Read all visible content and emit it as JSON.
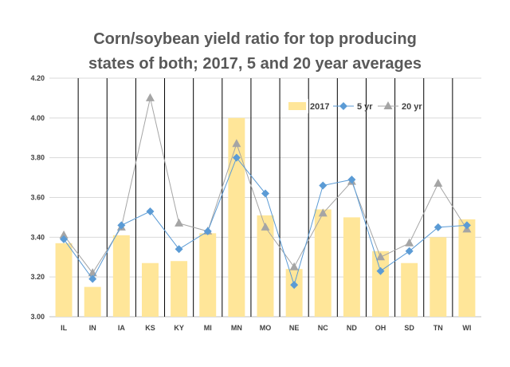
{
  "chart_data": {
    "type": "bar",
    "title_lines": [
      "Corn/soybean yield ratio for top producing",
      "states of both; 2017, 5 and 20 year averages"
    ],
    "xlabel": "",
    "ylabel": "",
    "categories": [
      "IL",
      "IN",
      "IA",
      "KS",
      "KY",
      "MI",
      "MN",
      "MO",
      "NE",
      "NC",
      "ND",
      "OH",
      "SD",
      "TN",
      "WI"
    ],
    "ylim": [
      3.0,
      4.2
    ],
    "yticks": [
      "3.00",
      "3.20",
      "3.40",
      "3.60",
      "3.80",
      "4.00",
      "4.20"
    ],
    "legend_position": "top-right",
    "series": [
      {
        "name": "2017",
        "kind": "bar",
        "color": "#FFE699",
        "values": [
          3.37,
          3.15,
          3.41,
          3.27,
          3.28,
          3.42,
          4.0,
          3.51,
          3.24,
          3.54,
          3.5,
          3.33,
          3.27,
          3.4,
          3.49
        ]
      },
      {
        "name": "5 yr",
        "kind": "line",
        "marker": "diamond",
        "color": "#5B9BD5",
        "values": [
          3.39,
          3.19,
          3.46,
          3.53,
          3.34,
          3.43,
          3.8,
          3.62,
          3.16,
          3.66,
          3.69,
          3.23,
          3.33,
          3.45,
          3.46
        ]
      },
      {
        "name": "20 yr",
        "kind": "line",
        "marker": "triangle",
        "color": "#A5A5A5",
        "values": [
          3.41,
          3.22,
          3.45,
          4.1,
          3.47,
          3.43,
          3.87,
          3.45,
          3.25,
          3.52,
          3.68,
          3.3,
          3.37,
          3.67,
          3.44
        ]
      }
    ]
  }
}
